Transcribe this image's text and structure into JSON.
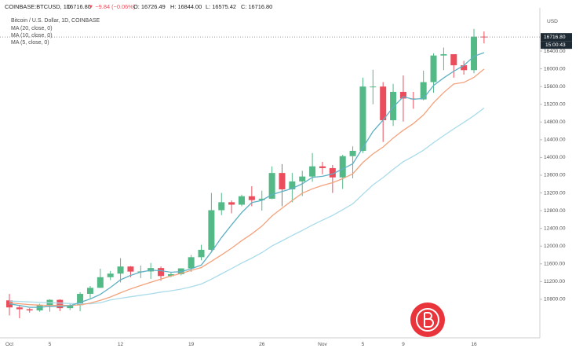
{
  "header": {
    "symbol": "COINBASE:BTCUSD, 1D",
    "last": "16716.80",
    "change": "▼ −9.84 (−0.06%)",
    "open": "O: 16726.49",
    "high": "H: 16844.00",
    "low": "L: 16575.42",
    "close": "C: 16716.80"
  },
  "chart_data": {
    "type": "candlestick",
    "title": "Bitcoin / U.S. Dollar, 1D, COINBASE",
    "currency": "USD",
    "last_price_label": "16716.80",
    "countdown": "15:00:43",
    "up_color": "#53b987",
    "down_color": "#eb4d5c",
    "categories": [
      "Oct",
      null,
      null,
      null,
      "5",
      null,
      null,
      null,
      null,
      null,
      null,
      "12",
      null,
      null,
      null,
      null,
      null,
      null,
      "19",
      null,
      null,
      null,
      null,
      null,
      null,
      "26",
      null,
      null,
      null,
      null,
      null,
      "Nov",
      null,
      null,
      null,
      "5",
      null,
      null,
      null,
      "9",
      null,
      null,
      null,
      null,
      null,
      null,
      "16",
      null
    ],
    "open": [
      10776,
      10617,
      10576,
      10549,
      10669,
      10788,
      10601,
      10669,
      10923,
      11059,
      11299,
      11379,
      11540,
      11425,
      11429,
      11505,
      11325,
      11367,
      11498,
      11750,
      11917,
      12810,
      12990,
      12935,
      13125,
      13038,
      13070,
      13650,
      13280,
      13460,
      13570,
      13800,
      13760,
      13550,
      14030,
      14150,
      15600,
      15600,
      14840,
      15480,
      15330,
      15310,
      15700,
      16300,
      16330,
      16080,
      15970,
      16726.49
    ],
    "high": [
      10920,
      10665,
      10600,
      10700,
      10800,
      10800,
      10700,
      10960,
      11100,
      11490,
      11440,
      11730,
      11550,
      11560,
      11620,
      11540,
      11400,
      11500,
      11800,
      12030,
      13200,
      13200,
      13030,
      13160,
      13350,
      13250,
      13800,
      13850,
      13650,
      13700,
      14100,
      13900,
      13830,
      14060,
      14250,
      15800,
      15980,
      15700,
      15660,
      15850,
      15480,
      15960,
      16350,
      16480,
      16330,
      16180,
      16900,
      16844
    ],
    "low": [
      10436,
      10374,
      10500,
      10520,
      10520,
      10535,
      10555,
      10530,
      10825,
      11059,
      11232,
      11180,
      11300,
      11280,
      11261,
      11220,
      11300,
      11340,
      11420,
      11680,
      11890,
      12700,
      12740,
      12900,
      12900,
      12800,
      13060,
      12900,
      12990,
      13130,
      13450,
      13620,
      13200,
      13290,
      13530,
      14100,
      15200,
      14350,
      14710,
      14810,
      15100,
      15290,
      15460,
      15970,
      15800,
      15870,
      15900,
      16575.42
    ],
    "close": [
      10617,
      10576,
      10549,
      10669,
      10788,
      10601,
      10669,
      10923,
      11059,
      11299,
      11379,
      11540,
      11425,
      11429,
      11505,
      11325,
      11367,
      11498,
      11750,
      11917,
      12810,
      12990,
      12935,
      13125,
      13038,
      13070,
      13650,
      13280,
      13460,
      13570,
      13800,
      13760,
      13550,
      14030,
      14150,
      15600,
      15600,
      14840,
      15480,
      15330,
      15310,
      15700,
      16300,
      16330,
      16080,
      15970,
      16726,
      16716.8
    ],
    "overlays": [
      {
        "name": "MA (20, close, 0)",
        "color": "#a9dbe9",
        "values": [
          10760,
          10750,
          10740,
          10730,
          10720,
          10715,
          10705,
          10700,
          10700,
          10720,
          10786,
          10824,
          10858,
          10891,
          10922,
          10962,
          10992,
          11029,
          11083,
          11145,
          11255,
          11375,
          11494,
          11617,
          11730,
          11853,
          12002,
          12120,
          12240,
          12354,
          12475,
          12586,
          12692,
          12822,
          12954,
          13168,
          13380,
          13547,
          13733,
          13904,
          14029,
          14164,
          14333,
          14493,
          14645,
          14790,
          14944,
          15116
        ]
      },
      {
        "name": "MA (10, close, 0)",
        "color": "#f4a27c",
        "values": [
          10720,
          10700,
          10680,
          10670,
          10660,
          10668,
          10658,
          10675,
          10714,
          10775,
          10852,
          10948,
          11035,
          11111,
          11183,
          11256,
          11325,
          11383,
          11452,
          11514,
          11657,
          11802,
          11953,
          12122,
          12276,
          12450,
          12679,
          12857,
          13028,
          13193,
          13292,
          13369,
          13431,
          13521,
          13632,
          13885,
          14080,
          14236,
          14438,
          14614,
          14765,
          14959,
          15234,
          15464,
          15657,
          15694,
          15807,
          15995
        ]
      },
      {
        "name": "MA (5, close, 0)",
        "color": "#5fb0c4",
        "values": [
          10700,
          10660,
          10620,
          10620,
          10640,
          10637,
          10655,
          10730,
          10808,
          10910,
          11066,
          11240,
          11340,
          11414,
          11456,
          11445,
          11410,
          11425,
          11489,
          11571,
          11868,
          12193,
          12480,
          12755,
          12980,
          13032,
          13164,
          13233,
          13300,
          13406,
          13552,
          13574,
          13628,
          13742,
          13858,
          14218,
          14586,
          14844,
          15134,
          15370,
          15312,
          15332,
          15624,
          15794,
          15944,
          16076,
          16281,
          16365
        ]
      }
    ],
    "ylim": [
      9930,
      17340
    ],
    "yticks": [
      {
        "value": 10800,
        "label": "10800.00"
      },
      {
        "value": 11200,
        "label": "11200.00"
      },
      {
        "value": 11600,
        "label": "11600.00"
      },
      {
        "value": 12000,
        "label": "12000.00"
      },
      {
        "value": 12400,
        "label": "12400.00"
      },
      {
        "value": 12800,
        "label": "12800.00"
      },
      {
        "value": 13200,
        "label": "13200.00"
      },
      {
        "value": 13600,
        "label": "13600.00"
      },
      {
        "value": 14000,
        "label": "14000.00"
      },
      {
        "value": 14400,
        "label": "14400.00"
      },
      {
        "value": 14800,
        "label": "14800.00"
      },
      {
        "value": 15200,
        "label": "15200.00"
      },
      {
        "value": 15600,
        "label": "15600.00"
      },
      {
        "value": 16000,
        "label": "16000.00"
      },
      {
        "value": 16400,
        "label": "16400.00"
      }
    ],
    "grid": false
  }
}
